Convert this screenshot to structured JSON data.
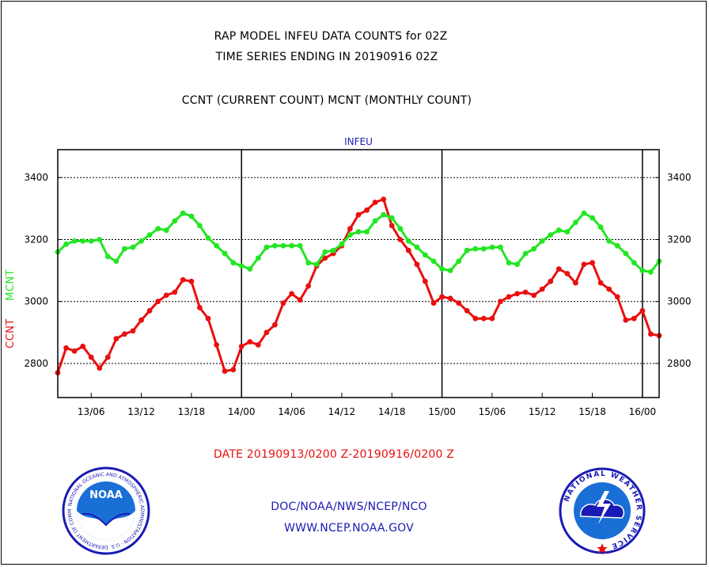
{
  "header": {
    "line1": "RAP MODEL INFEU DATA COUNTS for 02Z",
    "line2": "TIME SERIES ENDING IN 20190916 02Z",
    "line3": "CCNT (CURRENT COUNT) MCNT (MONTHLY COUNT)"
  },
  "footer": {
    "date_range": "DATE 20190913/0200 Z-20190916/0200 Z",
    "org": "DOC/NOAA/NWS/NCEP/NCO",
    "url": "WWW.NCEP.NOAA.GOV"
  },
  "logos": {
    "left_badge": "NOAA",
    "left_ring": "NATIONAL OCEANIC AND ATMOSPHERIC ADMINISTRATION · U.S. DEPARTMENT OF COMMERCE",
    "right_ring": "NATIONAL WEATHER SERVICE"
  },
  "colors": {
    "ccnt": "#e81010",
    "mcnt": "#22e622",
    "title": "#1a1ab4",
    "frame": "#000000"
  },
  "chart_data": {
    "type": "line",
    "title": "INFEU",
    "ylabel_parts": [
      "CCNT",
      "MCNT"
    ],
    "ylim": [
      2690,
      3490
    ],
    "yticks": [
      2800,
      3000,
      3200,
      3400
    ],
    "ytick_labels": [
      "2800",
      "3000",
      "3200",
      "3400"
    ],
    "xlim": [
      2,
      74
    ],
    "xticks": [
      6,
      12,
      18,
      24,
      30,
      36,
      42,
      48,
      54,
      60,
      66,
      72
    ],
    "xtick_labels": [
      "13/06",
      "13/12",
      "13/18",
      "14/00",
      "14/06",
      "14/12",
      "14/18",
      "15/00",
      "15/06",
      "15/12",
      "15/18",
      "16/00"
    ],
    "day_lines": [
      24,
      48,
      72
    ],
    "grid": true,
    "series": [
      {
        "name": "CCNT",
        "color": "#e81010",
        "values": [
          2770,
          2850,
          2840,
          2855,
          2820,
          2785,
          2820,
          2880,
          2895,
          2905,
          2940,
          2970,
          3000,
          3020,
          3030,
          3070,
          3065,
          2980,
          2945,
          2860,
          2775,
          2780,
          2855,
          2870,
          2860,
          2900,
          2925,
          2995,
          3025,
          3005,
          3050,
          3115,
          3140,
          3155,
          3180,
          3235,
          3280,
          3295,
          3320,
          3330,
          3245,
          3200,
          3165,
          3120,
          3065,
          2995,
          3015,
          3010,
          2995,
          2970,
          2945,
          2945,
          2945,
          3000,
          3015,
          3025,
          3030,
          3020,
          3040,
          3065,
          3105,
          3090,
          3060,
          3120,
          3125,
          3060,
          3040,
          3015,
          2940,
          2945,
          2970,
          2895,
          2890
        ]
      },
      {
        "name": "MCNT",
        "color": "#22e622",
        "values": [
          3160,
          3185,
          3195,
          3195,
          3195,
          3200,
          3145,
          3130,
          3170,
          3175,
          3195,
          3215,
          3235,
          3230,
          3260,
          3285,
          3275,
          3245,
          3205,
          3180,
          3155,
          3125,
          3115,
          3105,
          3140,
          3175,
          3180,
          3180,
          3180,
          3180,
          3125,
          3120,
          3160,
          3165,
          3185,
          3215,
          3225,
          3225,
          3260,
          3280,
          3270,
          3235,
          3195,
          3175,
          3150,
          3130,
          3105,
          3100,
          3130,
          3165,
          3170,
          3170,
          3175,
          3175,
          3125,
          3120,
          3155,
          3170,
          3195,
          3215,
          3230,
          3225,
          3255,
          3285,
          3270,
          3240,
          3195,
          3180,
          3155,
          3125,
          3100,
          3095,
          3130
        ]
      }
    ]
  }
}
